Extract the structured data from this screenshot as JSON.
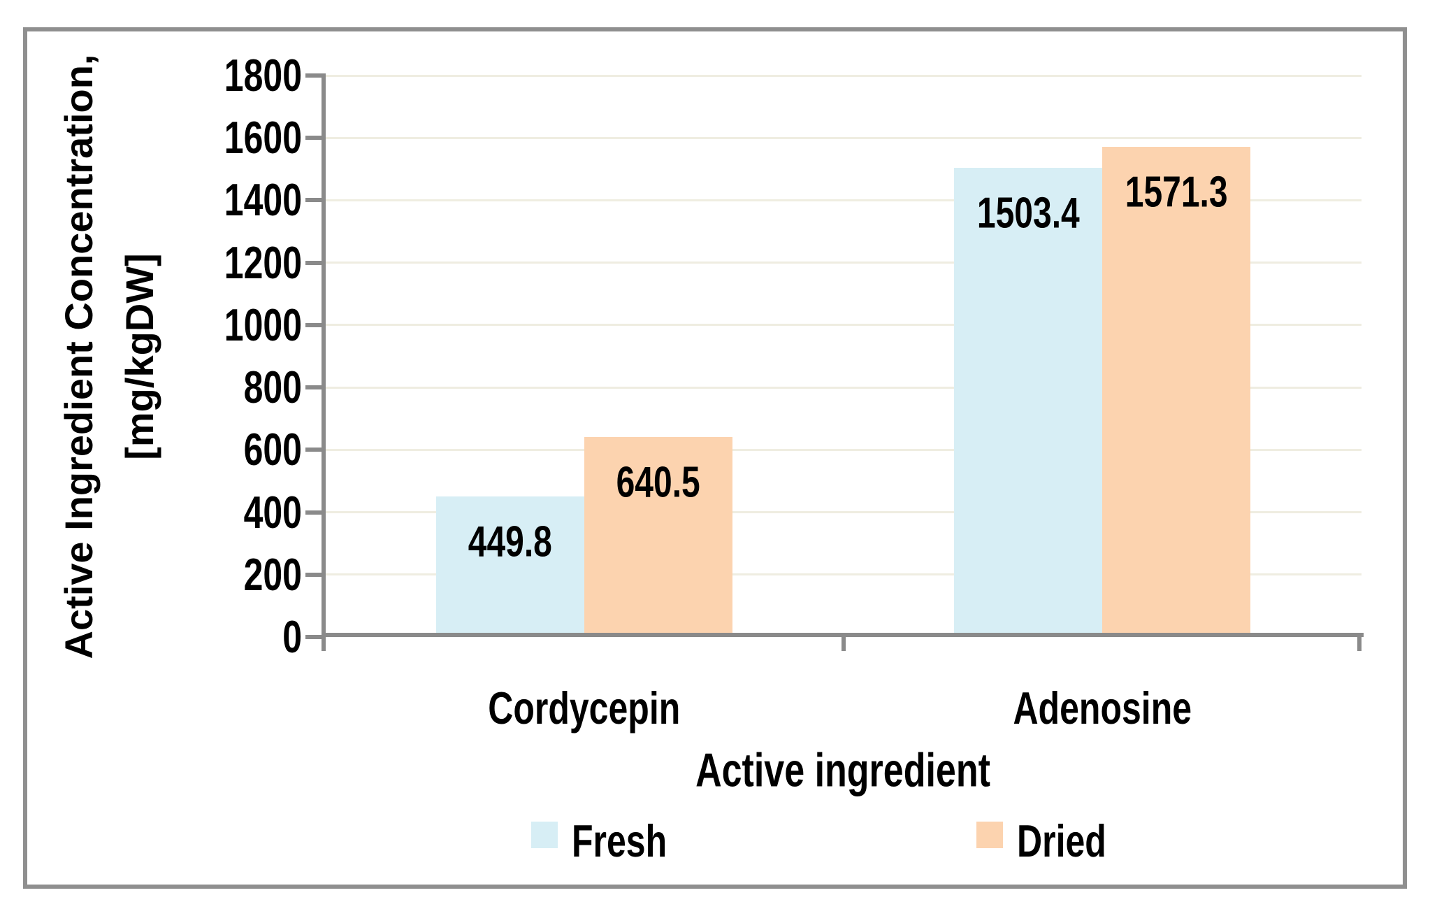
{
  "chart_data": {
    "type": "bar",
    "title": "",
    "categories": [
      "Cordycepin",
      "Adenosine"
    ],
    "series": [
      {
        "name": "Fresh",
        "color": "#D7EEF5",
        "values": [
          449.8,
          1503.4
        ]
      },
      {
        "name": "Dried",
        "color": "#FCD3AF",
        "values": [
          640.5,
          1571.3
        ]
      }
    ],
    "data_labels": {
      "Fresh": [
        "449.8",
        "1503.4"
      ],
      "Dried": [
        "640.5",
        "1571.3"
      ]
    },
    "xlabel": "Active ingredient",
    "ylabel_line1": "Active Ingredient Concentration,",
    "ylabel_line2": "[mg/kgDW]",
    "ylim": [
      0,
      1800
    ],
    "ytick_step": 200,
    "yticks": [
      "0",
      "200",
      "400",
      "600",
      "800",
      "1000",
      "1200",
      "1400",
      "1600",
      "1800"
    ],
    "grid": "horizontal-major",
    "legend_position": "bottom",
    "bar_gap_ratio": 1.5,
    "colors": {
      "axis": "#8A8A8A",
      "frame_border": "#8F8F8F",
      "gridline": "#EFEDE1",
      "text": "#000000",
      "background": "#FFFFFF"
    }
  }
}
